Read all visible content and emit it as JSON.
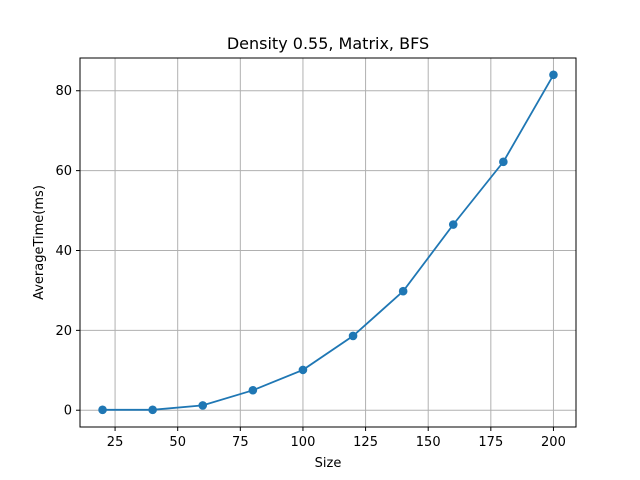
{
  "chart_data": {
    "type": "line",
    "title": "Density 0.55, Matrix, BFS",
    "xlabel": "Size",
    "ylabel": "AverageTime(ms)",
    "x": [
      20,
      40,
      60,
      80,
      100,
      120,
      140,
      160,
      180,
      200
    ],
    "series": [
      {
        "values": [
          0.1,
          0.1,
          1.2,
          5.0,
          10.1,
          18.6,
          29.8,
          46.5,
          62.2,
          84.0
        ],
        "color": "#1f77b4",
        "marker": "circle"
      }
    ],
    "xlim": [
      11,
      209
    ],
    "ylim": [
      -4.2,
      88.2
    ],
    "xticks": [
      25,
      50,
      75,
      100,
      125,
      150,
      175,
      200
    ],
    "yticks": [
      0,
      20,
      40,
      60,
      80
    ],
    "grid": true,
    "legend": "none"
  }
}
